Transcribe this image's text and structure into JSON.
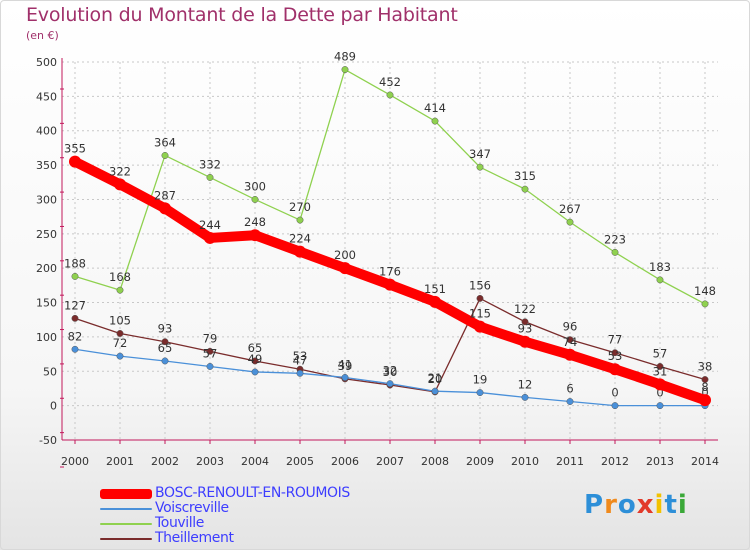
{
  "header": {
    "title": "Evolution du Montant de la Dette par Habitant",
    "unit": "(en €)"
  },
  "logo": {
    "text": "Proxiti",
    "letter_colors": [
      "#2d8fd8",
      "#f08a1c",
      "#2d8fd8",
      "#e23a2a",
      "#f2c200",
      "#2d8fd8",
      "#3aa838"
    ]
  },
  "chart_data": {
    "type": "line",
    "title": "Evolution du Montant de la Dette par Habitant",
    "ylabel": "(en €)",
    "xlabel": "",
    "x": [
      2000,
      2001,
      2002,
      2003,
      2004,
      2005,
      2006,
      2007,
      2008,
      2009,
      2010,
      2011,
      2012,
      2013,
      2014
    ],
    "ylim": [
      -50,
      500
    ],
    "yticks": [
      -50,
      0,
      50,
      100,
      150,
      200,
      250,
      300,
      350,
      400,
      450,
      500
    ],
    "grid": true,
    "legend_position": "bottom",
    "series": [
      {
        "name": "BOSC-RENOULT-EN-ROUMOIS",
        "color": "#ff0000",
        "values": [
          355,
          322,
          287,
          244,
          248,
          224,
          200,
          176,
          151,
          115,
          93,
          74,
          53,
          31,
          8
        ],
        "labels": [
          "355",
          "322",
          "287",
          "244",
          "248",
          "224",
          "200",
          "176",
          "151",
          "115",
          "93",
          "74",
          "53",
          "31",
          "8"
        ]
      },
      {
        "name": "Voiscreville",
        "color": "#4a90d9",
        "values": [
          82,
          72,
          65,
          57,
          49,
          47,
          41,
          32,
          21,
          19,
          12,
          6,
          0,
          0,
          0
        ],
        "labels": [
          "82",
          "72",
          "65",
          "57",
          "49",
          "47",
          "41",
          "32",
          "21",
          "19",
          "12",
          "6",
          "0",
          "0",
          "0"
        ]
      },
      {
        "name": "Touville",
        "color": "#8fd14f",
        "values": [
          188,
          168,
          364,
          332,
          300,
          270,
          489,
          452,
          414,
          347,
          315,
          267,
          223,
          183,
          148
        ],
        "labels": [
          "188",
          "168",
          "364",
          "332",
          "300",
          "270",
          "489",
          "452",
          "414",
          "347",
          "315",
          "267",
          "223",
          "183",
          "148"
        ]
      },
      {
        "name": "Theillement",
        "color": "#7a2c2c",
        "values": [
          127,
          105,
          93,
          79,
          65,
          53,
          39,
          30,
          20,
          156,
          122,
          96,
          77,
          57,
          38
        ],
        "labels": [
          "127",
          "105",
          "93",
          "79",
          "65",
          "53",
          "39",
          "30",
          "20",
          "156",
          "122",
          "96",
          "77",
          "57",
          "38"
        ]
      }
    ]
  }
}
